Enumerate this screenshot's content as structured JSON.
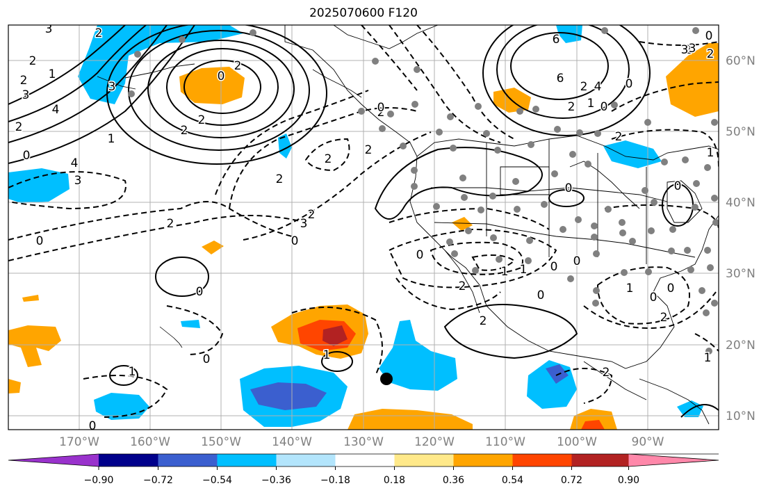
{
  "title": "2025070600 F120",
  "map": {
    "lat_labels": [
      "60°N",
      "50°N",
      "40°N",
      "30°N",
      "20°N",
      "10°N"
    ],
    "lon_labels": [
      "170°W",
      "160°W",
      "150°W",
      "140°W",
      "130°W",
      "120°W",
      "110°W",
      "100°W",
      "90°W"
    ],
    "contour_labels": [
      "3",
      "2",
      "2",
      "1",
      "2",
      "3",
      "4",
      "2",
      "0",
      "4",
      "3",
      "0",
      "6",
      "2",
      "2",
      "2",
      "0",
      "3",
      "1",
      "2",
      "3",
      "2",
      "0",
      "2",
      "2",
      "2",
      "2",
      "6",
      "3",
      "2",
      "0",
      "2",
      "1",
      "1",
      "0",
      "0",
      "2",
      "0",
      "1",
      "0",
      "0",
      "0",
      "1",
      "2",
      "1",
      "0",
      "1",
      "2",
      "2",
      "0",
      "2",
      "2",
      "0",
      "0",
      "1",
      "1",
      "0",
      "3",
      "0",
      "4",
      "2",
      "0",
      "0"
    ],
    "colors": {
      "positive_contour": "#000000",
      "negative_contour": "#000000",
      "coastline": "#000000",
      "grid": "#b0b0b0",
      "stations": "#808080",
      "marker": "#000000"
    }
  },
  "colorbar": {
    "ticks": [
      "−0.90",
      "−0.72",
      "−0.54",
      "−0.36",
      "−0.18",
      "0.18",
      "0.36",
      "0.54",
      "0.72",
      "0.90"
    ],
    "colors": [
      "#9932cc",
      "#00008b",
      "#3b5fcf",
      "#00bfff",
      "#b3e5fc",
      "#ffffff",
      "#ffe98a",
      "#ffa500",
      "#ff4500",
      "#b22222",
      "#ff88aa"
    ]
  }
}
